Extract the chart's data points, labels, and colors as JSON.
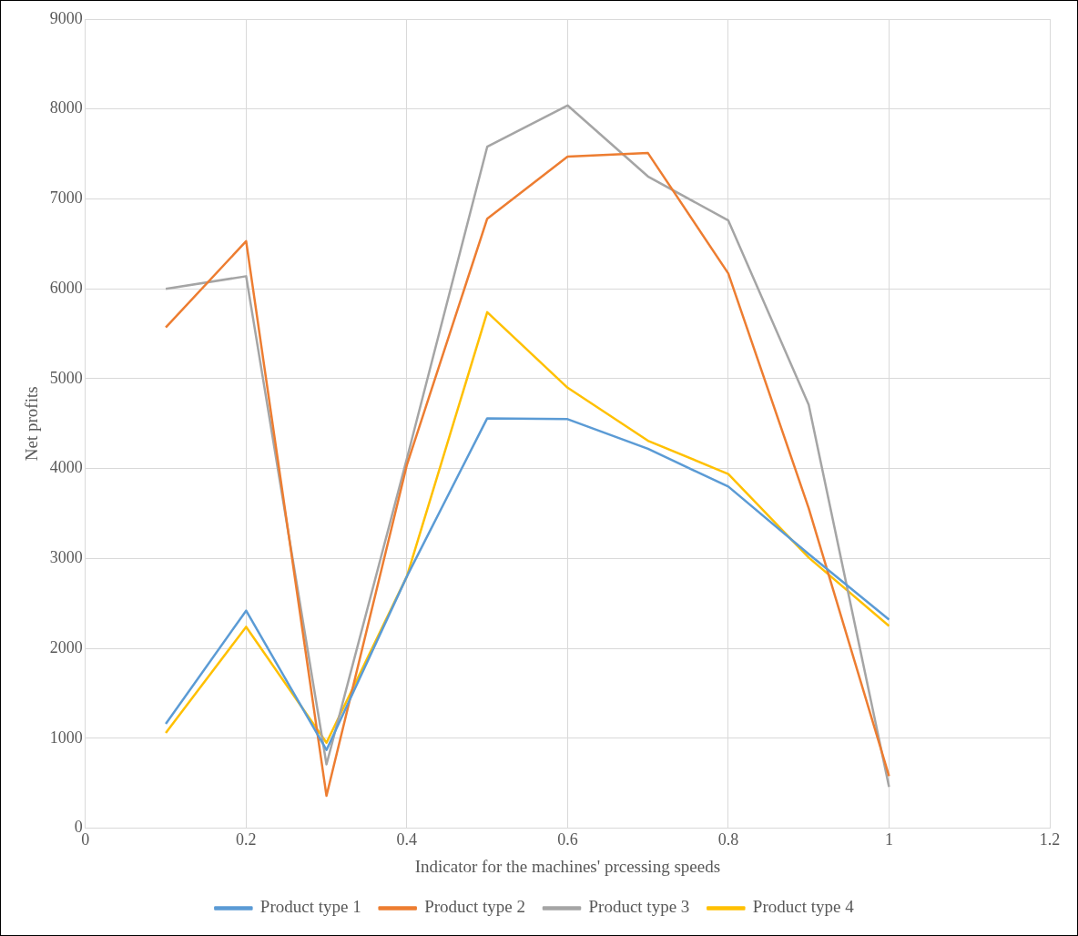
{
  "chart_data": {
    "type": "line",
    "xlabel": "Indicator for the machines' prcessing speeds",
    "ylabel": "Net profits",
    "x": [
      0.1,
      0.2,
      0.3,
      0.4,
      0.5,
      0.6,
      0.7,
      0.8,
      0.9,
      1
    ],
    "series": [
      {
        "name": "Product type 1",
        "color": "#5b9bd5",
        "values": [
          1160,
          2420,
          870,
          2800,
          4560,
          4550,
          4220,
          3800,
          3050,
          2320
        ]
      },
      {
        "name": "Product type 2",
        "color": "#ed7d31",
        "values": [
          5570,
          6530,
          360,
          4040,
          6780,
          7470,
          7510,
          6170,
          3560,
          580
        ]
      },
      {
        "name": "Product type 3",
        "color": "#a5a5a5",
        "values": [
          6000,
          6140,
          710,
          4110,
          7580,
          8040,
          7250,
          6760,
          4710,
          460
        ]
      },
      {
        "name": "Product type 4",
        "color": "#ffc000",
        "values": [
          1060,
          2240,
          950,
          2800,
          5740,
          4900,
          4310,
          3940,
          3010,
          2250
        ]
      }
    ],
    "xlim": [
      0,
      1.2
    ],
    "xticks": [
      0,
      0.2,
      0.4,
      0.6,
      0.8,
      1,
      1.2
    ],
    "ylim": [
      0,
      9000
    ],
    "yticks": [
      0,
      1000,
      2000,
      3000,
      4000,
      5000,
      6000,
      7000,
      8000,
      9000
    ],
    "grid": true,
    "legend": "bottom",
    "marker": "none",
    "line_style": "solid"
  }
}
